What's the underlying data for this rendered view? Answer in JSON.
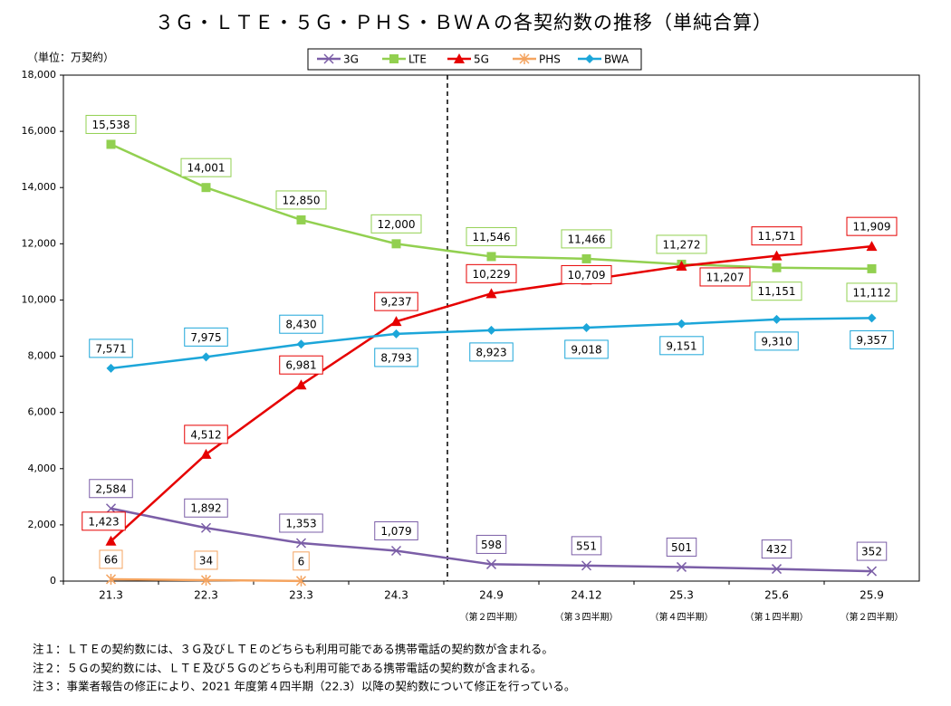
{
  "chart_data": {
    "type": "line",
    "title": "３Ｇ・ＬＴＥ・５Ｇ・ＰＨＳ・ＢＷＡの各契約数の推移（単純合算）",
    "y_label": "（単位：万契約）",
    "categories": [
      "21.3",
      "22.3",
      "23.3",
      "24.3",
      "24.9",
      "24.12",
      "25.3",
      "25.6",
      "25.9"
    ],
    "category_sublabels": [
      null,
      null,
      null,
      null,
      "（第２四半期）",
      "（第３四半期）",
      "（第４四半期）",
      "（第１四半期）",
      "（第２四半期）"
    ],
    "series": [
      {
        "name": "3G",
        "color": "#7b5ea7",
        "values": [
          2584,
          1892,
          1353,
          1079,
          598,
          551,
          501,
          432,
          352
        ],
        "value_labels": [
          "2,584",
          "1,892",
          "1,353",
          "1,079",
          "598",
          "551",
          "501",
          "432",
          "352"
        ]
      },
      {
        "name": "LTE",
        "color": "#92d050",
        "values": [
          15538,
          14001,
          12850,
          12000,
          11546,
          11466,
          11272,
          11151,
          11112
        ],
        "value_labels": [
          "15,538",
          "14,001",
          "12,850",
          "12,000",
          "11,546",
          "11,466",
          "11,272",
          "11,151",
          "11,112"
        ]
      },
      {
        "name": "5G",
        "color": "#e60000",
        "values": [
          1423,
          4512,
          6981,
          9237,
          10229,
          10709,
          11207,
          11571,
          11909
        ],
        "value_labels": [
          "1,423",
          "4,512",
          "6,981",
          "9,237",
          "10,229",
          "10,709",
          "11,207",
          "11,571",
          "11,909"
        ]
      },
      {
        "name": "PHS",
        "color": "#f4a460",
        "values": [
          66,
          34,
          6,
          null,
          null,
          null,
          null,
          null,
          null
        ],
        "value_labels": [
          "66",
          "34",
          "6",
          null,
          null,
          null,
          null,
          null,
          null
        ]
      },
      {
        "name": "BWA",
        "color": "#1ca6d9",
        "values": [
          7571,
          7975,
          8430,
          8793,
          8923,
          9018,
          9151,
          9310,
          9357
        ],
        "value_labels": [
          "7,571",
          "7,975",
          "8,430",
          "8,793",
          "8,923",
          "9,018",
          "9,151",
          "9,310",
          "9,357"
        ]
      }
    ],
    "ylim": [
      0,
      18000
    ],
    "yticks": [
      0,
      {
        "value": 2000,
        "label": "2,000"
      },
      {
        "value": 4000,
        "label": "4,000"
      },
      {
        "value": 6000,
        "label": "6,000"
      },
      {
        "value": 8000,
        "label": "8,000"
      },
      {
        "value": 10000,
        "label": "10,000"
      },
      {
        "value": 12000,
        "label": "12,000"
      },
      {
        "value": 14000,
        "label": "14,000"
      },
      {
        "value": 16000,
        "label": "16,000"
      },
      {
        "value": 18000,
        "label": "18,000"
      }
    ],
    "notes": [
      "注１：ＬＴＥの契約数には、３Ｇ及びＬＴＥのどちらも利用可能である携帯電話の契約数が含まれる。",
      "注２：５Ｇの契約数には、ＬＴＥ及び５Ｇのどちらも利用可能である携帯電話の契約数が含まれる。",
      "注３：事業者報告の修正により、2021 年度第４四半期（22.3）以降の契約数について修正を行っている。"
    ]
  }
}
